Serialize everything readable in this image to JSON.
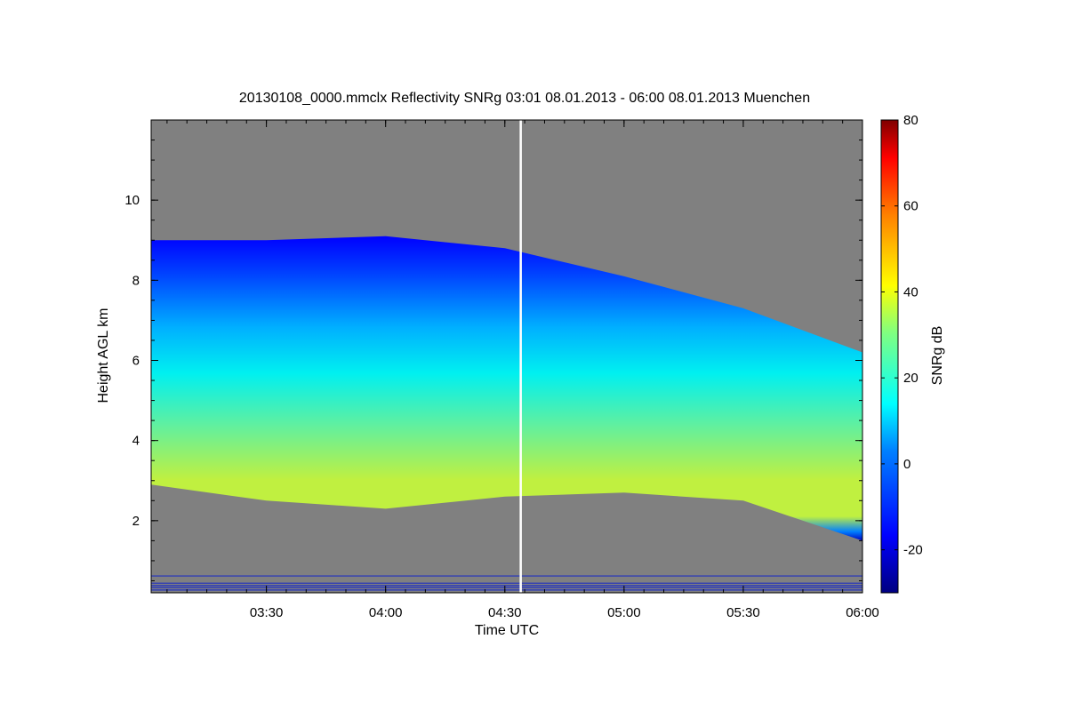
{
  "chart_data": {
    "type": "heatmap",
    "title": "20130108_0000.mmclx Reflectivity SNRg   03:01 08.01.2013 - 06:00 08.01.2013 Muenchen",
    "xlabel": "Time UTC",
    "ylabel": "Height AGL km",
    "x_range": [
      "03:01",
      "06:00"
    ],
    "ylim": [
      0.2,
      12
    ],
    "x_ticks": [
      "03:30",
      "04:00",
      "04:30",
      "05:00",
      "05:30",
      "06:00"
    ],
    "y_ticks": [
      2,
      4,
      6,
      8,
      10
    ],
    "colorbar": {
      "label": "SNRg dB",
      "range": [
        -30,
        80
      ],
      "ticks": [
        -20,
        0,
        20,
        40,
        60,
        80
      ]
    },
    "marker_time": "04:34",
    "background_color": "#808080",
    "cloud_layer": {
      "description_values": [
        {
          "time": "03:01",
          "base_km": 2.9,
          "top_km": 9.0,
          "snr_max_db": 33
        },
        {
          "time": "03:30",
          "base_km": 2.5,
          "top_km": 9.0,
          "snr_max_db": 35
        },
        {
          "time": "04:00",
          "base_km": 2.3,
          "top_km": 9.1,
          "snr_max_db": 33
        },
        {
          "time": "04:30",
          "base_km": 2.6,
          "top_km": 8.8,
          "snr_max_db": 30
        },
        {
          "time": "05:00",
          "base_km": 2.7,
          "top_km": 8.1,
          "snr_max_db": 32
        },
        {
          "time": "05:30",
          "base_km": 2.5,
          "top_km": 7.3,
          "snr_max_db": 34
        },
        {
          "time": "06:00",
          "base_km": 1.5,
          "top_km": 6.2,
          "snr_max_db": 38
        }
      ]
    }
  }
}
